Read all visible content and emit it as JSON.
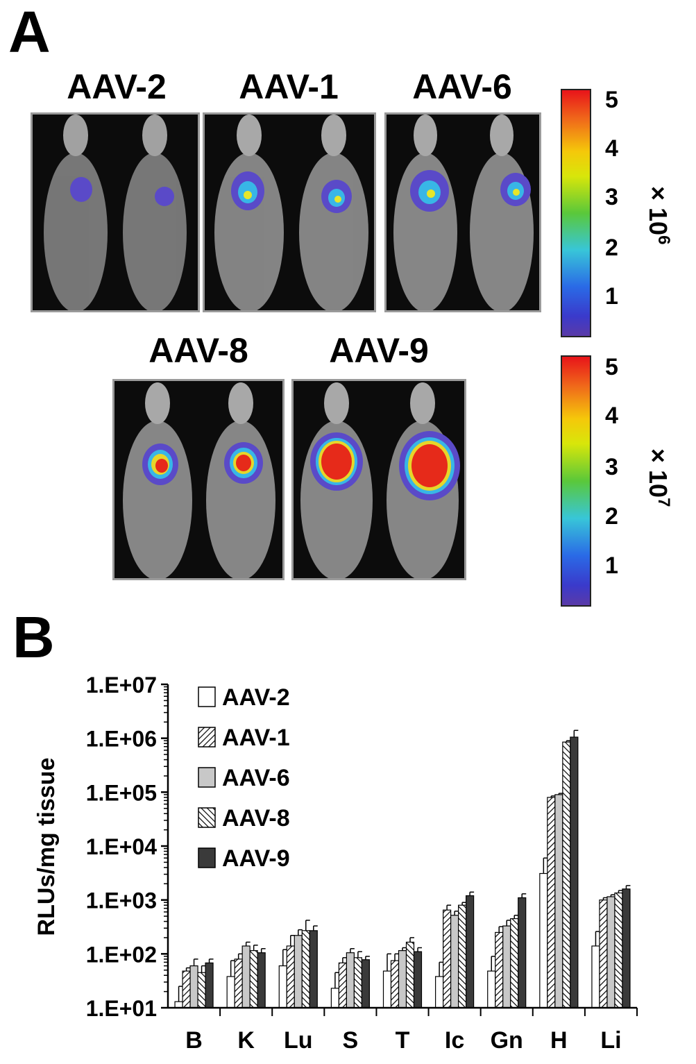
{
  "panel_a": {
    "letter": "A",
    "groups": [
      {
        "label": "AAV-2"
      },
      {
        "label": "AAV-1"
      },
      {
        "label": "AAV-6"
      },
      {
        "label": "AAV-8"
      },
      {
        "label": "AAV-9"
      }
    ],
    "scale_top": {
      "ticks": [
        "5",
        "4",
        "3",
        "2",
        "1"
      ],
      "multiplier_base": "× 10",
      "multiplier_exp": "6"
    },
    "scale_bottom": {
      "ticks": [
        "5",
        "4",
        "3",
        "2",
        "1"
      ],
      "multiplier_base": "× 10",
      "multiplier_exp": "7"
    }
  },
  "panel_b": {
    "letter": "B"
  },
  "colors": {
    "AAV-2": "#ffffff",
    "AAV-1": "hatch-forward",
    "AAV-6": "#c8c8c8",
    "AAV-8": "hatch-backward",
    "AAV-9": "#3a3a3a"
  },
  "chart_data": {
    "type": "bar",
    "scale": "log",
    "ylabel": "RLUs/mg tissue",
    "xlabel": "",
    "ylim": [
      10,
      10000000
    ],
    "yticks": [
      "1.E+07",
      "1.E+06",
      "1.E+05",
      "1.E+04",
      "1.E+03",
      "1.E+02",
      "1.E+01"
    ],
    "categories": [
      "B",
      "K",
      "Lu",
      "S",
      "T",
      "Ic",
      "Gn",
      "H",
      "Li"
    ],
    "legend_position": "top-left",
    "series": [
      {
        "name": "AAV-2",
        "values": [
          13,
          38,
          60,
          23,
          48,
          38,
          48,
          3100,
          140
        ],
        "errors": [
          25,
          75,
          120,
          45,
          100,
          70,
          90,
          6000,
          260
        ]
      },
      {
        "name": "AAV-1",
        "values": [
          48,
          80,
          140,
          68,
          75,
          650,
          250,
          80000,
          1000
        ],
        "errors": [
          55,
          100,
          220,
          85,
          100,
          800,
          320,
          85000,
          1100
        ]
      },
      {
        "name": "AAV-6",
        "values": [
          60,
          140,
          220,
          105,
          115,
          520,
          330,
          90000,
          1150
        ],
        "errors": [
          80,
          165,
          280,
          125,
          130,
          620,
          420,
          95000,
          1250
        ]
      },
      {
        "name": "AAV-8",
        "values": [
          45,
          115,
          270,
          85,
          165,
          800,
          450,
          850000,
          1350
        ],
        "errors": [
          60,
          145,
          420,
          110,
          200,
          900,
          520,
          900000,
          1500
        ]
      },
      {
        "name": "AAV-9",
        "values": [
          68,
          105,
          270,
          78,
          110,
          1200,
          1100,
          1050000,
          1600
        ],
        "errors": [
          80,
          125,
          330,
          90,
          130,
          1400,
          1300,
          1400000,
          1850
        ]
      }
    ]
  }
}
